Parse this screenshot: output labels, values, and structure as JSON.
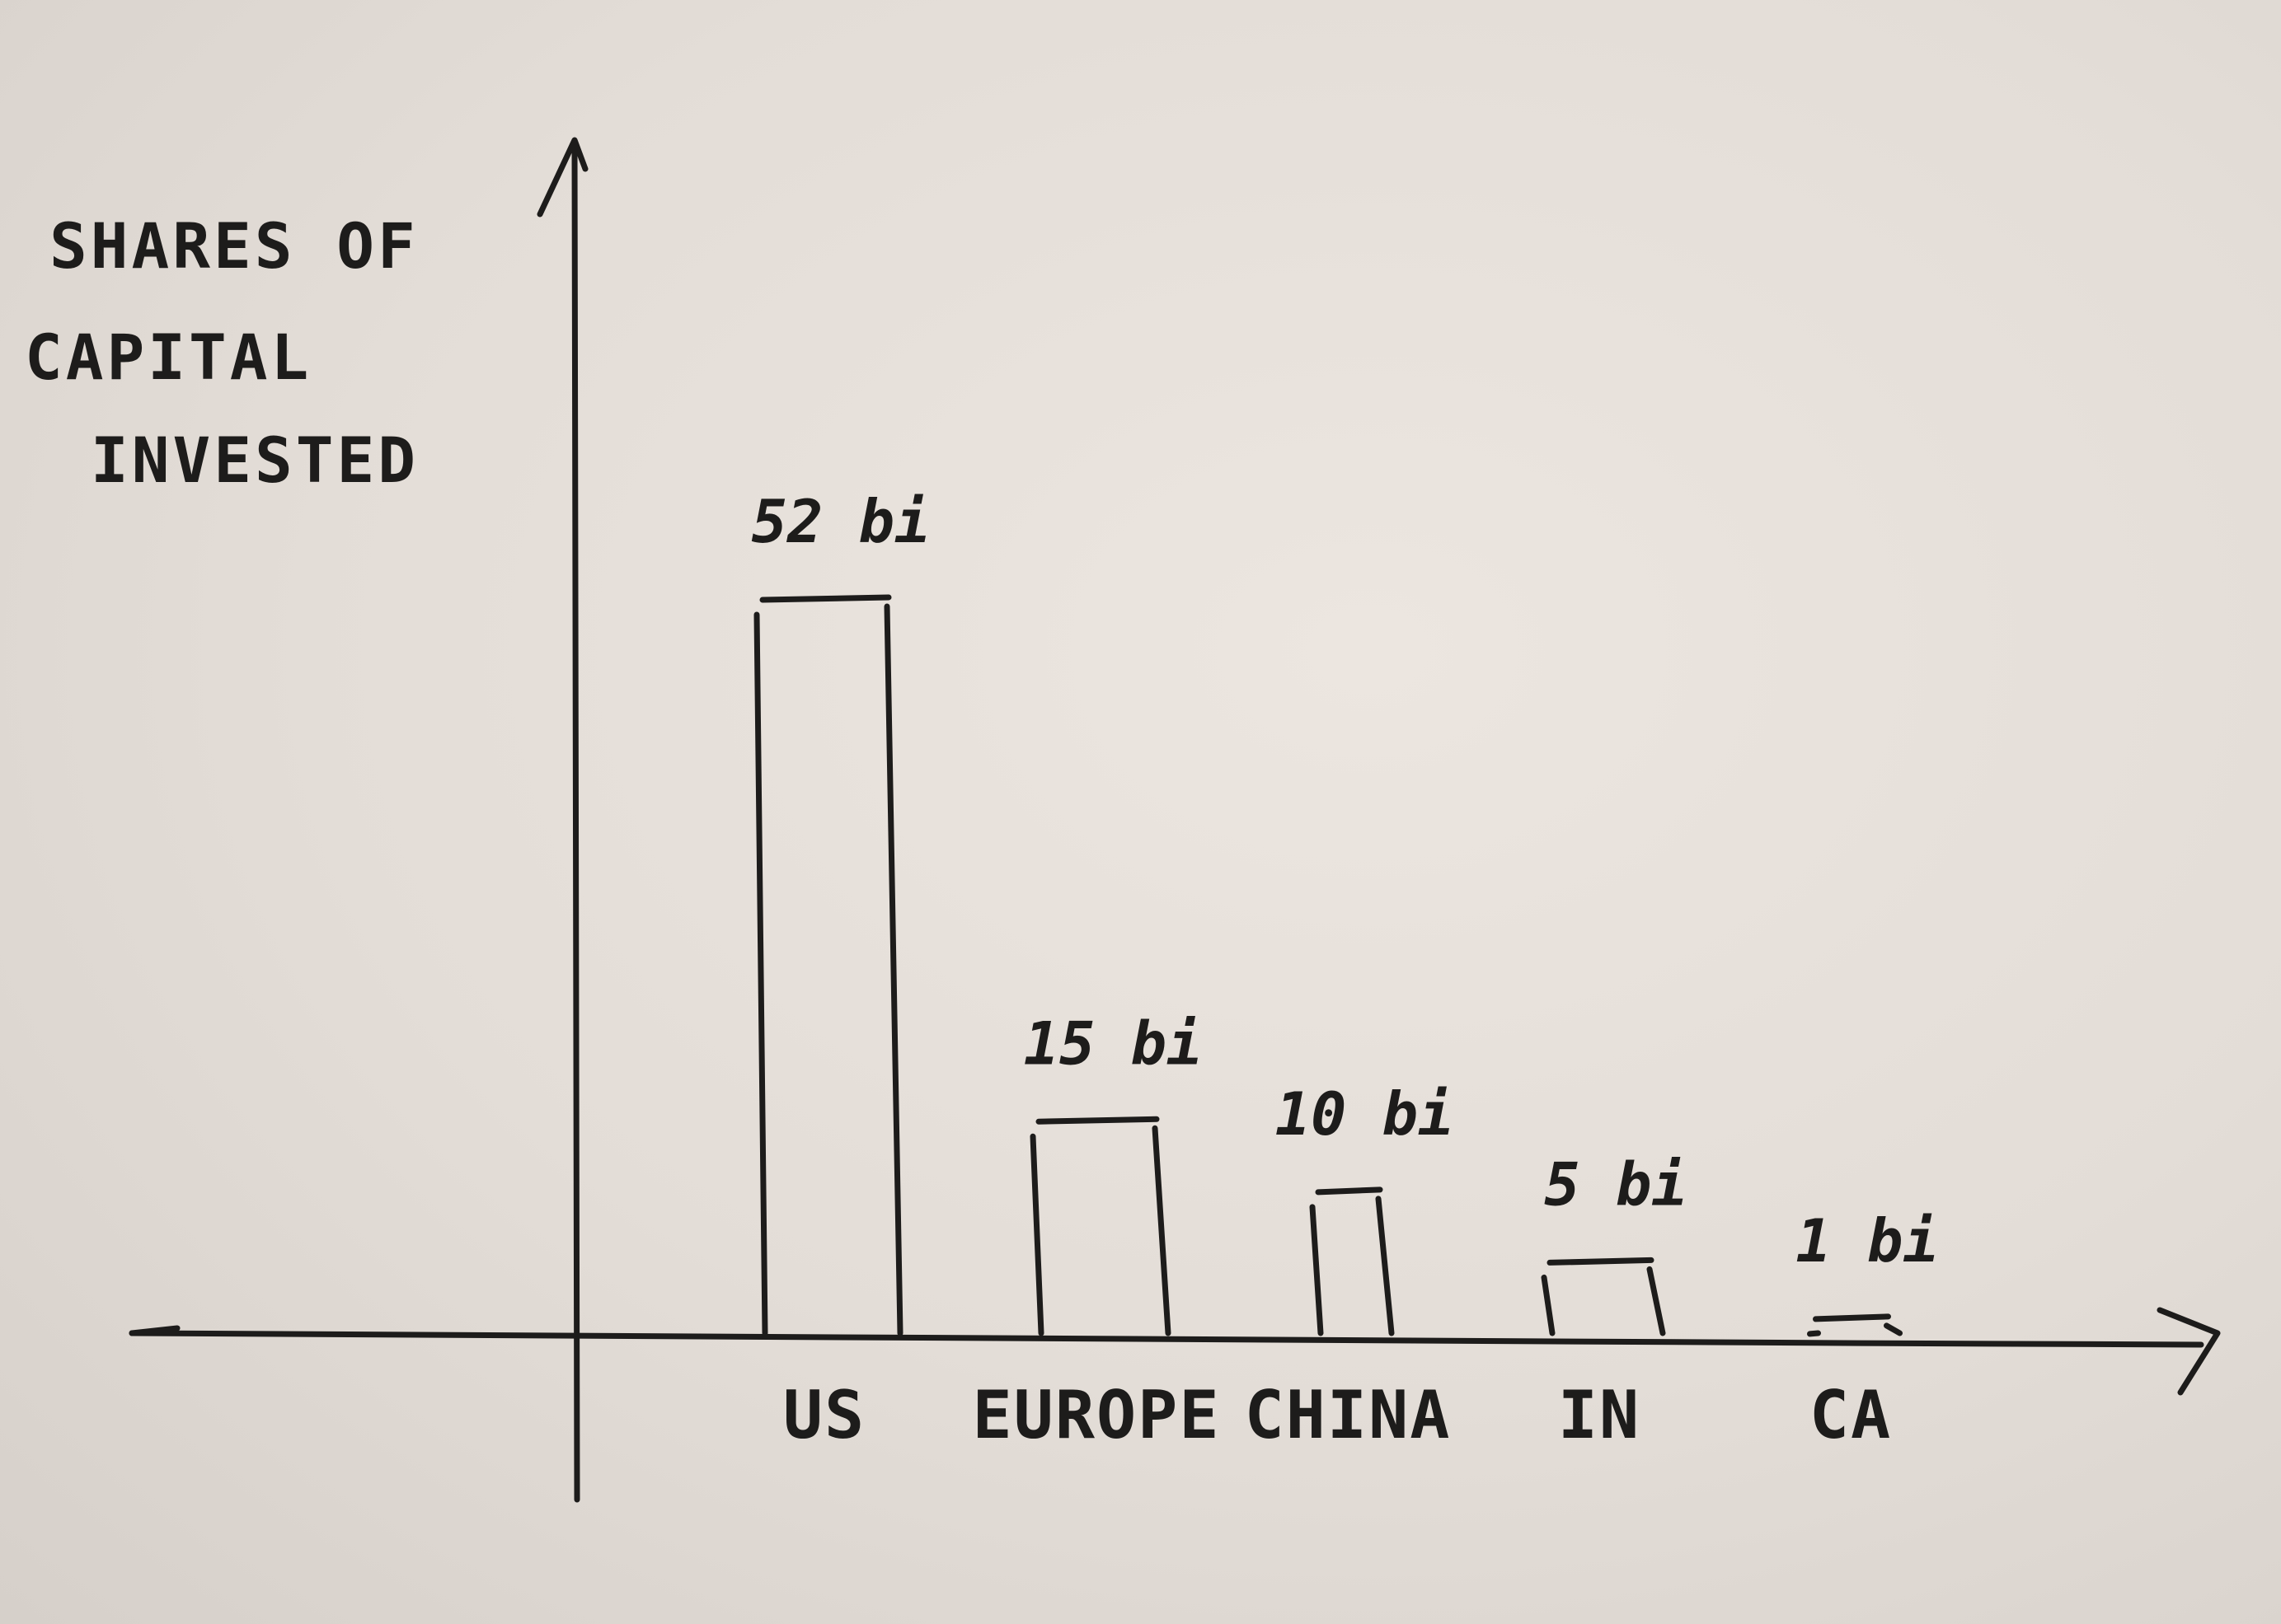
{
  "chart_data": {
    "type": "bar",
    "style": "hand-drawn sketch on paper",
    "ylabel_lines": [
      "SHARES OF",
      "CAPITAL",
      "INVESTED"
    ],
    "categories": [
      "US",
      "EUROPE",
      "CHINA",
      "IN",
      "CA"
    ],
    "values": [
      52,
      15,
      10,
      5,
      1
    ],
    "value_labels": [
      "52 bi",
      "15 bi",
      "10 bi",
      "5 bi",
      "1 bi"
    ],
    "legend": "none",
    "grid": false
  },
  "colors": {
    "ink": "#1d1c1b",
    "paper": "#e6e0da"
  }
}
